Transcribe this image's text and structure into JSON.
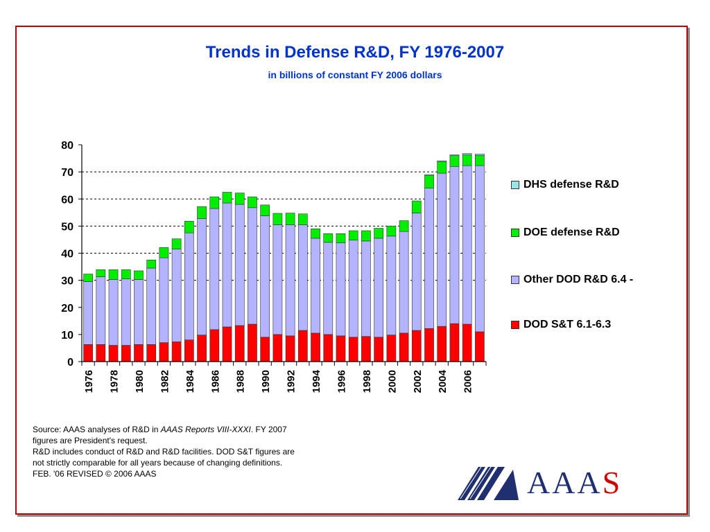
{
  "chart_data": {
    "type": "bar",
    "stacked": true,
    "title": "Trends in Defense R&D, FY 1976-2007",
    "subtitle": "in billions of constant FY 2006 dollars",
    "ylim": [
      0,
      80
    ],
    "yticks": [
      0,
      10,
      20,
      30,
      40,
      50,
      60,
      70,
      80
    ],
    "grid": "dashed horizontal lines at 70, 60, 50, 40, 30",
    "legend_position": "right",
    "categories": [
      "1976",
      "1977",
      "1978",
      "1979",
      "1980",
      "1981",
      "1982",
      "1983",
      "1984",
      "1985",
      "1986",
      "1987",
      "1988",
      "1989",
      "1990",
      "1991",
      "1992",
      "1993",
      "1994",
      "1995",
      "1996",
      "1997",
      "1998",
      "1999",
      "2000",
      "2001",
      "2002",
      "2003",
      "2004",
      "2005",
      "2006",
      "2007"
    ],
    "tick_labels": [
      "1976",
      "1978",
      "1980",
      "1982",
      "1984",
      "1986",
      "1988",
      "1990",
      "1992",
      "1994",
      "1996",
      "1998",
      "2000",
      "2002",
      "2004",
      "2006"
    ],
    "series": [
      {
        "name": "DOD S&T 6.1-6.3",
        "color": "#ff0000",
        "values": [
          6.3,
          6.3,
          6.0,
          6.0,
          6.3,
          6.3,
          7.0,
          7.3,
          8.0,
          9.8,
          11.8,
          12.8,
          13.3,
          13.8,
          9.0,
          10.0,
          9.5,
          11.5,
          10.5,
          10.0,
          9.5,
          9.0,
          9.3,
          9.0,
          9.8,
          10.5,
          11.5,
          12.2,
          13.0,
          14.0,
          13.8,
          11.0
        ]
      },
      {
        "name": "Other DOD R&D 6.4 -",
        "color": "#b3b3ff",
        "values": [
          23.2,
          25.0,
          24.3,
          24.5,
          24.0,
          28.2,
          31.3,
          34.2,
          39.5,
          43.0,
          44.7,
          45.7,
          44.7,
          43.0,
          44.8,
          40.5,
          41.0,
          39.0,
          35.0,
          34.0,
          34.3,
          35.8,
          35.2,
          36.5,
          36.5,
          37.5,
          43.3,
          51.8,
          56.5,
          58.0,
          58.5,
          61.3
        ]
      },
      {
        "name": "DOE defense R&D",
        "color": "#00ee00",
        "values": [
          2.8,
          2.6,
          3.6,
          3.4,
          3.2,
          3.0,
          3.8,
          3.8,
          4.3,
          4.4,
          4.3,
          4.0,
          4.2,
          4.0,
          4.0,
          4.2,
          4.3,
          4.0,
          3.5,
          3.2,
          3.4,
          3.5,
          3.8,
          3.7,
          3.7,
          4.0,
          4.5,
          4.7,
          4.3,
          4.0,
          4.0,
          3.8
        ]
      },
      {
        "name": "DHS defense R&D",
        "color": "#99e5e5",
        "values": [
          0,
          0,
          0,
          0,
          0,
          0,
          0,
          0,
          0,
          0,
          0,
          0,
          0,
          0,
          0,
          0,
          0,
          0,
          0,
          0,
          0,
          0,
          0,
          0,
          0,
          0,
          0,
          0.3,
          0.3,
          0.3,
          0.5,
          0.5
        ]
      }
    ],
    "legend_order": [
      "DHS defense R&D",
      "DOE defense R&D",
      "Other DOD R&D 6.4 -",
      "DOD S&T 6.1-6.3"
    ]
  },
  "notes": {
    "line1_prefix": "Source: AAAS analyses of R&D in ",
    "line1_italic": "AAAS Reports VIII-XXXI",
    "line1_suffix": ". FY 2007 figures are President's request.",
    "line2": "R&D includes conduct of R&D and R&D facilities. DOD S&T figures are not strictly comparable for all years because of changing definitions.",
    "line3": "FEB. '06 REVISED © 2006 AAAS"
  },
  "logo": {
    "text_main": "AAA",
    "text_accent": "S",
    "colors": {
      "main": "#1f2f6f",
      "accent": "#cc0000"
    },
    "icon": "aaas-logo-mark"
  }
}
